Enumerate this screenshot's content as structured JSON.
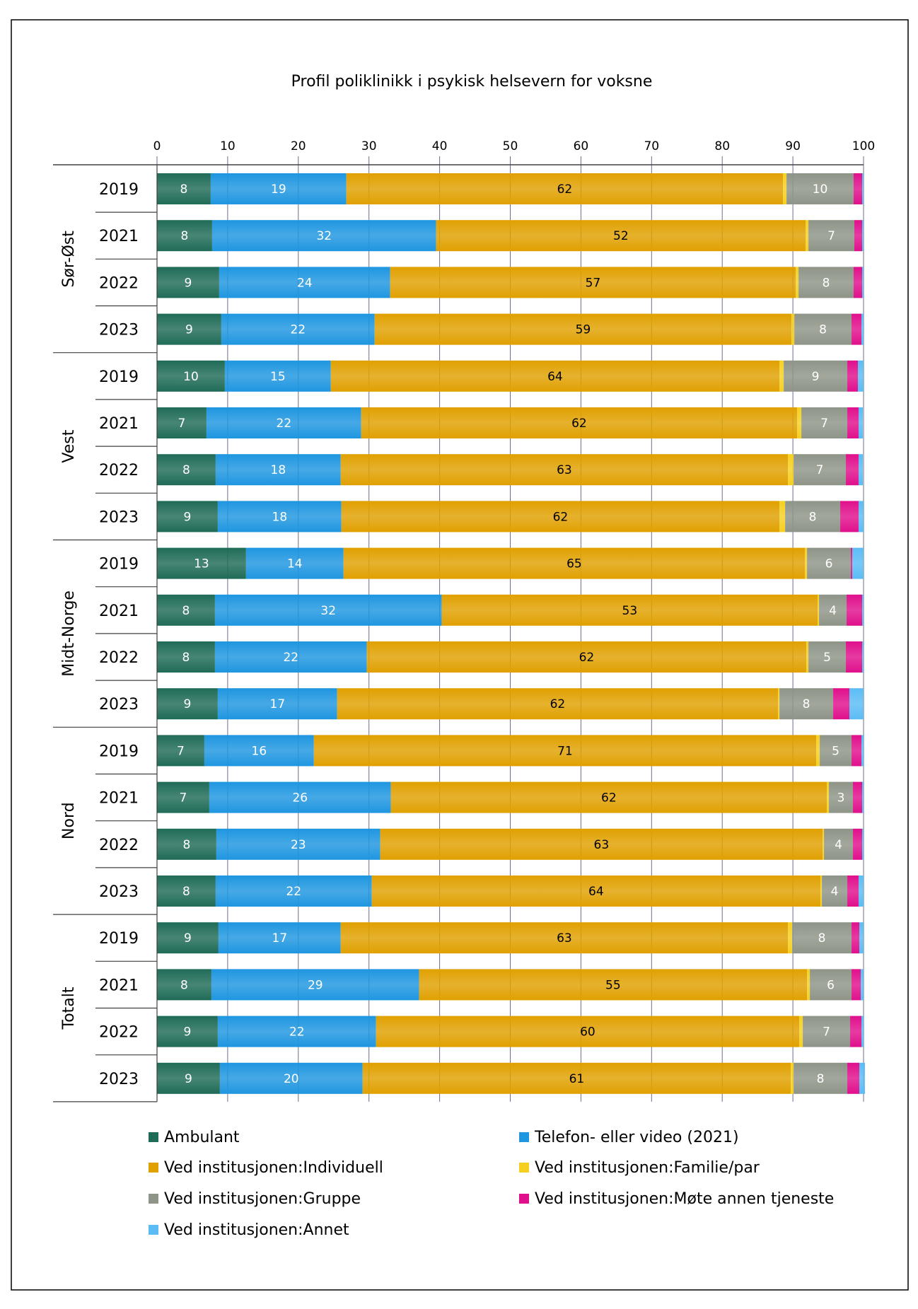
{
  "chart_data": {
    "type": "bar",
    "orientation": "horizontal",
    "stacked": true,
    "title": "Profil poliklinikk i psykisk helsevern for voksne",
    "xlim": [
      0,
      100
    ],
    "xticks": [
      0,
      10,
      20,
      30,
      40,
      50,
      60,
      70,
      80,
      90,
      100
    ],
    "grid": true,
    "legend_position": "bottom",
    "groups": [
      {
        "name": "Sør-Øst",
        "categories": [
          "2019",
          "2021",
          "2022",
          "2023"
        ]
      },
      {
        "name": "Vest",
        "categories": [
          "2019",
          "2021",
          "2022",
          "2023"
        ]
      },
      {
        "name": "Midt-Norge",
        "categories": [
          "2019",
          "2021",
          "2022",
          "2023"
        ]
      },
      {
        "name": "Nord",
        "categories": [
          "2019",
          "2021",
          "2022",
          "2023"
        ]
      },
      {
        "name": "Totalt",
        "categories": [
          "2019",
          "2021",
          "2022",
          "2023"
        ]
      }
    ],
    "series": [
      {
        "name": "Ambulant",
        "color": "#1f6b57",
        "labeled": true,
        "values": [
          7.6,
          7.8,
          8.8,
          9.1,
          9.6,
          7.0,
          8.3,
          8.6,
          12.6,
          8.2,
          8.2,
          8.6,
          6.7,
          7.4,
          8.4,
          8.3,
          8.7,
          7.7,
          8.6,
          8.9
        ]
      },
      {
        "name": "Telefon- eller video (2021)",
        "color": "#1e96e0",
        "labeled": true,
        "values": [
          19.2,
          31.7,
          24.2,
          21.7,
          15.0,
          21.9,
          17.7,
          17.5,
          13.8,
          32.1,
          21.5,
          16.9,
          15.5,
          25.7,
          23.2,
          22.1,
          17.3,
          29.4,
          22.4,
          20.2
        ]
      },
      {
        "name": "Ved institusjonen:Individuell",
        "color": "#e0a000",
        "labeled": true,
        "values": [
          61.8,
          52.3,
          57.4,
          59.0,
          63.5,
          61.7,
          63.3,
          62.0,
          65.3,
          53.2,
          62.2,
          62.4,
          71.1,
          61.7,
          62.6,
          63.5,
          63.3,
          54.9,
          59.9,
          60.6
        ]
      },
      {
        "name": "Ved institusjonen:Familie/par",
        "color": "#f5d020",
        "labeled": false,
        "values": [
          0.5,
          0.4,
          0.4,
          0.4,
          0.6,
          0.6,
          0.8,
          0.8,
          0.3,
          0.2,
          0.3,
          0.2,
          0.5,
          0.3,
          0.2,
          0.2,
          0.6,
          0.4,
          0.5,
          0.4
        ]
      },
      {
        "name": "Ved institusjonen:Gruppe",
        "color": "#8e9487",
        "labeled": true,
        "values": [
          9.5,
          6.5,
          7.8,
          8.1,
          9.0,
          6.5,
          7.4,
          7.8,
          6.2,
          3.9,
          5.3,
          7.6,
          4.5,
          3.4,
          4.1,
          3.6,
          8.4,
          5.9,
          6.7,
          7.6
        ]
      },
      {
        "name": "Ved institusjonen:Møte annen tjeneste",
        "color": "#e0108c",
        "labeled": false,
        "values": [
          1.2,
          1.1,
          1.2,
          1.4,
          1.5,
          1.6,
          1.8,
          2.6,
          0.2,
          2.2,
          2.3,
          2.3,
          1.4,
          1.3,
          1.3,
          1.6,
          1.1,
          1.3,
          1.6,
          1.7
        ]
      },
      {
        "name": "Ved institusjonen:Annet",
        "color": "#5bbcf5",
        "labeled": false,
        "values": [
          0.2,
          0.2,
          0.2,
          0.3,
          0.8,
          0.6,
          0.6,
          0.7,
          1.6,
          0.2,
          0.2,
          2.0,
          0.3,
          0.2,
          0.2,
          0.7,
          0.6,
          0.4,
          0.3,
          0.8
        ]
      }
    ]
  }
}
